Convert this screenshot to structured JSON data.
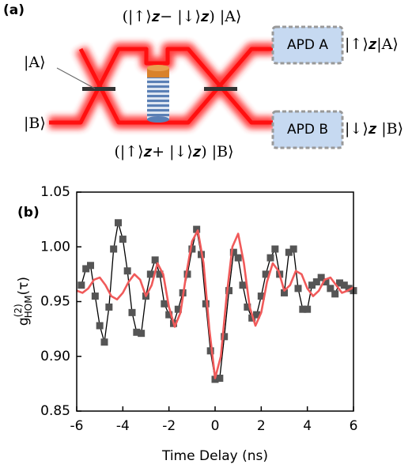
{
  "diagram": {
    "label": "(a)",
    "state_a": "|A⟩",
    "state_b": "|B⟩",
    "upper_path": "(|↑⟩𝒛− |↓⟩𝒛) |A⟩",
    "lower_path": "(|↑⟩𝒛+ |↓⟩𝒛) |B⟩",
    "apd_a": "APD A",
    "apd_a_out": "|↑⟩𝒛|A⟩",
    "apd_b": "APD B",
    "apd_b_out": "|↓⟩𝒛 |B⟩"
  },
  "chart_data": {
    "type": "line",
    "panel_label": "(b)",
    "xlabel": "Time Delay (ns)",
    "ylabel": {
      "base": "g",
      "sup": "(2)",
      "sub": "HOM",
      "arg": "(τ)"
    },
    "xlim": [
      -6,
      6
    ],
    "xticks": [
      -6,
      -4,
      -2,
      0,
      2,
      4,
      6
    ],
    "ylim": [
      0.85,
      1.05
    ],
    "yticks": [
      {
        "value": 0.85,
        "label": "0.85"
      },
      {
        "value": 0.9,
        "label": "0.90"
      },
      {
        "value": 0.95,
        "label": "0.95"
      },
      {
        "value": 1.0,
        "label": "1.00"
      },
      {
        "value": 1.05,
        "label": "1.05"
      }
    ],
    "series": [
      {
        "color": "#555555",
        "line_color": "#000000",
        "marker": "square",
        "x": [
          -5.8,
          -5.6,
          -5.4,
          -5.2,
          -5.0,
          -4.8,
          -4.6,
          -4.4,
          -4.2,
          -4.0,
          -3.8,
          -3.6,
          -3.4,
          -3.2,
          -3.0,
          -2.8,
          -2.6,
          -2.4,
          -2.2,
          -2.0,
          -1.8,
          -1.6,
          -1.4,
          -1.2,
          -1.0,
          -0.8,
          -0.6,
          -0.4,
          -0.2,
          0.0,
          0.2,
          0.4,
          0.6,
          0.8,
          1.0,
          1.2,
          1.4,
          1.6,
          1.8,
          2.0,
          2.2,
          2.4,
          2.6,
          2.8,
          3.0,
          3.2,
          3.4,
          3.6,
          3.8,
          4.0,
          4.2,
          4.4,
          4.6,
          4.8,
          5.0,
          5.2,
          5.4,
          5.6,
          5.8,
          6.0
        ],
        "values": [
          0.965,
          0.98,
          0.983,
          0.955,
          0.928,
          0.913,
          0.945,
          0.998,
          1.022,
          1.007,
          0.978,
          0.94,
          0.922,
          0.921,
          0.955,
          0.975,
          0.988,
          0.975,
          0.948,
          0.938,
          0.93,
          0.943,
          0.958,
          0.975,
          0.998,
          1.016,
          0.993,
          0.948,
          0.905,
          0.879,
          0.88,
          0.918,
          0.96,
          0.995,
          0.99,
          0.965,
          0.945,
          0.935,
          0.938,
          0.955,
          0.975,
          0.99,
          0.998,
          0.975,
          0.958,
          0.995,
          0.998,
          0.962,
          0.943,
          0.943,
          0.965,
          0.968,
          0.972,
          0.968,
          0.962,
          0.957,
          0.967,
          0.965,
          0.962,
          0.96
        ]
      },
      {
        "color": "#f05a5a",
        "marker": "none",
        "x": [
          -6.0,
          -5.75,
          -5.5,
          -5.25,
          -5.0,
          -4.75,
          -4.5,
          -4.25,
          -4.0,
          -3.75,
          -3.5,
          -3.25,
          -3.0,
          -2.75,
          -2.5,
          -2.25,
          -2.0,
          -1.75,
          -1.5,
          -1.25,
          -1.0,
          -0.75,
          -0.5,
          -0.25,
          0.0,
          0.25,
          0.5,
          0.75,
          1.0,
          1.25,
          1.5,
          1.75,
          2.0,
          2.25,
          2.5,
          2.75,
          3.0,
          3.25,
          3.5,
          3.75,
          4.0,
          4.25,
          4.5,
          4.75,
          5.0,
          5.25,
          5.5,
          5.75,
          6.0
        ],
        "values": [
          0.96,
          0.958,
          0.962,
          0.97,
          0.972,
          0.965,
          0.955,
          0.952,
          0.958,
          0.968,
          0.975,
          0.97,
          0.955,
          0.965,
          0.985,
          0.975,
          0.945,
          0.927,
          0.94,
          0.975,
          1.005,
          1.015,
          0.985,
          0.925,
          0.88,
          0.9,
          0.955,
          1.0,
          1.012,
          0.985,
          0.945,
          0.928,
          0.94,
          0.968,
          0.985,
          0.978,
          0.96,
          0.965,
          0.978,
          0.975,
          0.962,
          0.955,
          0.96,
          0.97,
          0.972,
          0.965,
          0.958,
          0.96,
          0.963
        ]
      }
    ]
  }
}
